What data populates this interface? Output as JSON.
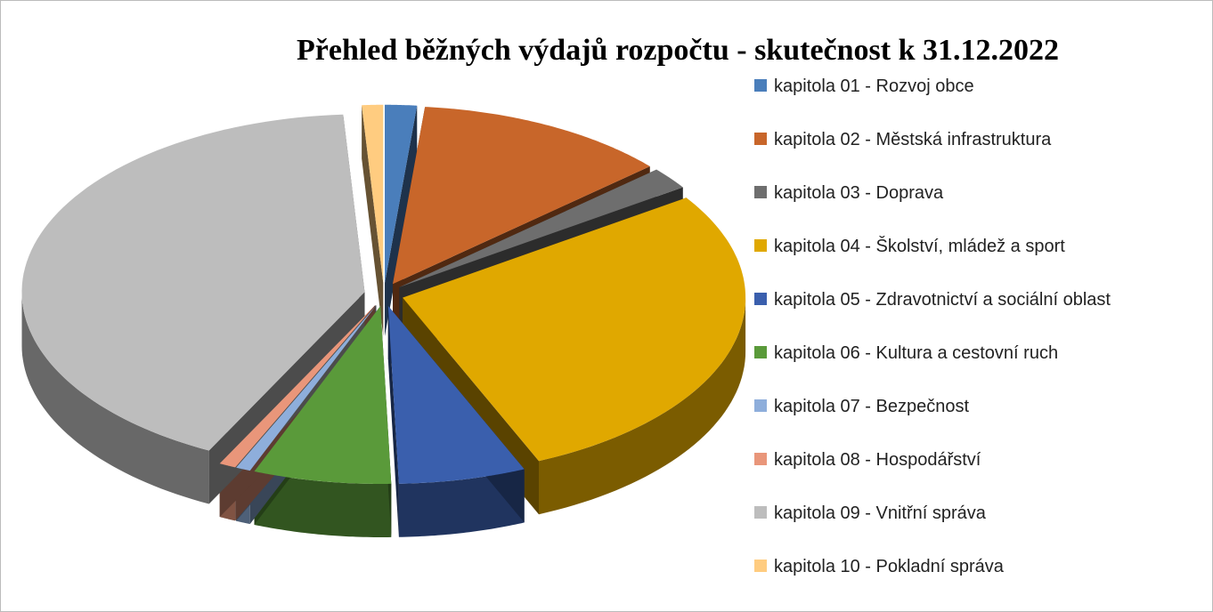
{
  "chart_data": {
    "type": "pie3d",
    "title": "Přehled běžných výdajů rozpočtu - skutečnost k 31.12.2022",
    "categories": [
      "kapitola 01 - Rozvoj obce",
      "kapitola 02 - Městská infrastruktura",
      "kapitola 03 - Doprava",
      "kapitola 04 - Školství, mládež a sport",
      "kapitola 05 - Zdravotnictví a sociální oblast",
      "kapitola 06 - Kultura a cestovní ruch",
      "kapitola 07 - Bezpečnost",
      "kapitola 08 - Hospodářství",
      "kapitola 09 - Vnitřní správa",
      "kapitola 10 - Pokladní správa"
    ],
    "values": [
      1.5,
      12,
      2,
      28,
      6,
      6.5,
      0.7,
      0.8,
      41.5,
      1
    ],
    "colors": [
      "#4a7ebb",
      "#c8662a",
      "#6e6e6e",
      "#e0a800",
      "#3a5fad",
      "#5a9a3a",
      "#8eaedb",
      "#e9967a",
      "#bdbdbd",
      "#ffcc80"
    ],
    "legend": "right"
  }
}
